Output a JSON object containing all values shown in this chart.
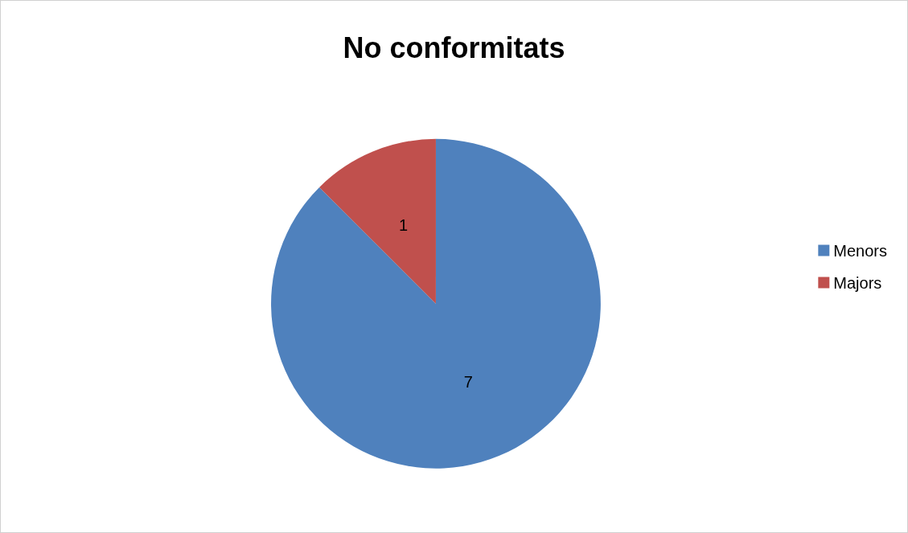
{
  "chart_data": {
    "type": "pie",
    "title": "No conformitats",
    "categories": [
      "Menors",
      "Majors"
    ],
    "values": [
      7,
      1
    ],
    "colors": [
      "#4f81bd",
      "#c0504d"
    ],
    "data_labels": true,
    "legend": "right"
  }
}
